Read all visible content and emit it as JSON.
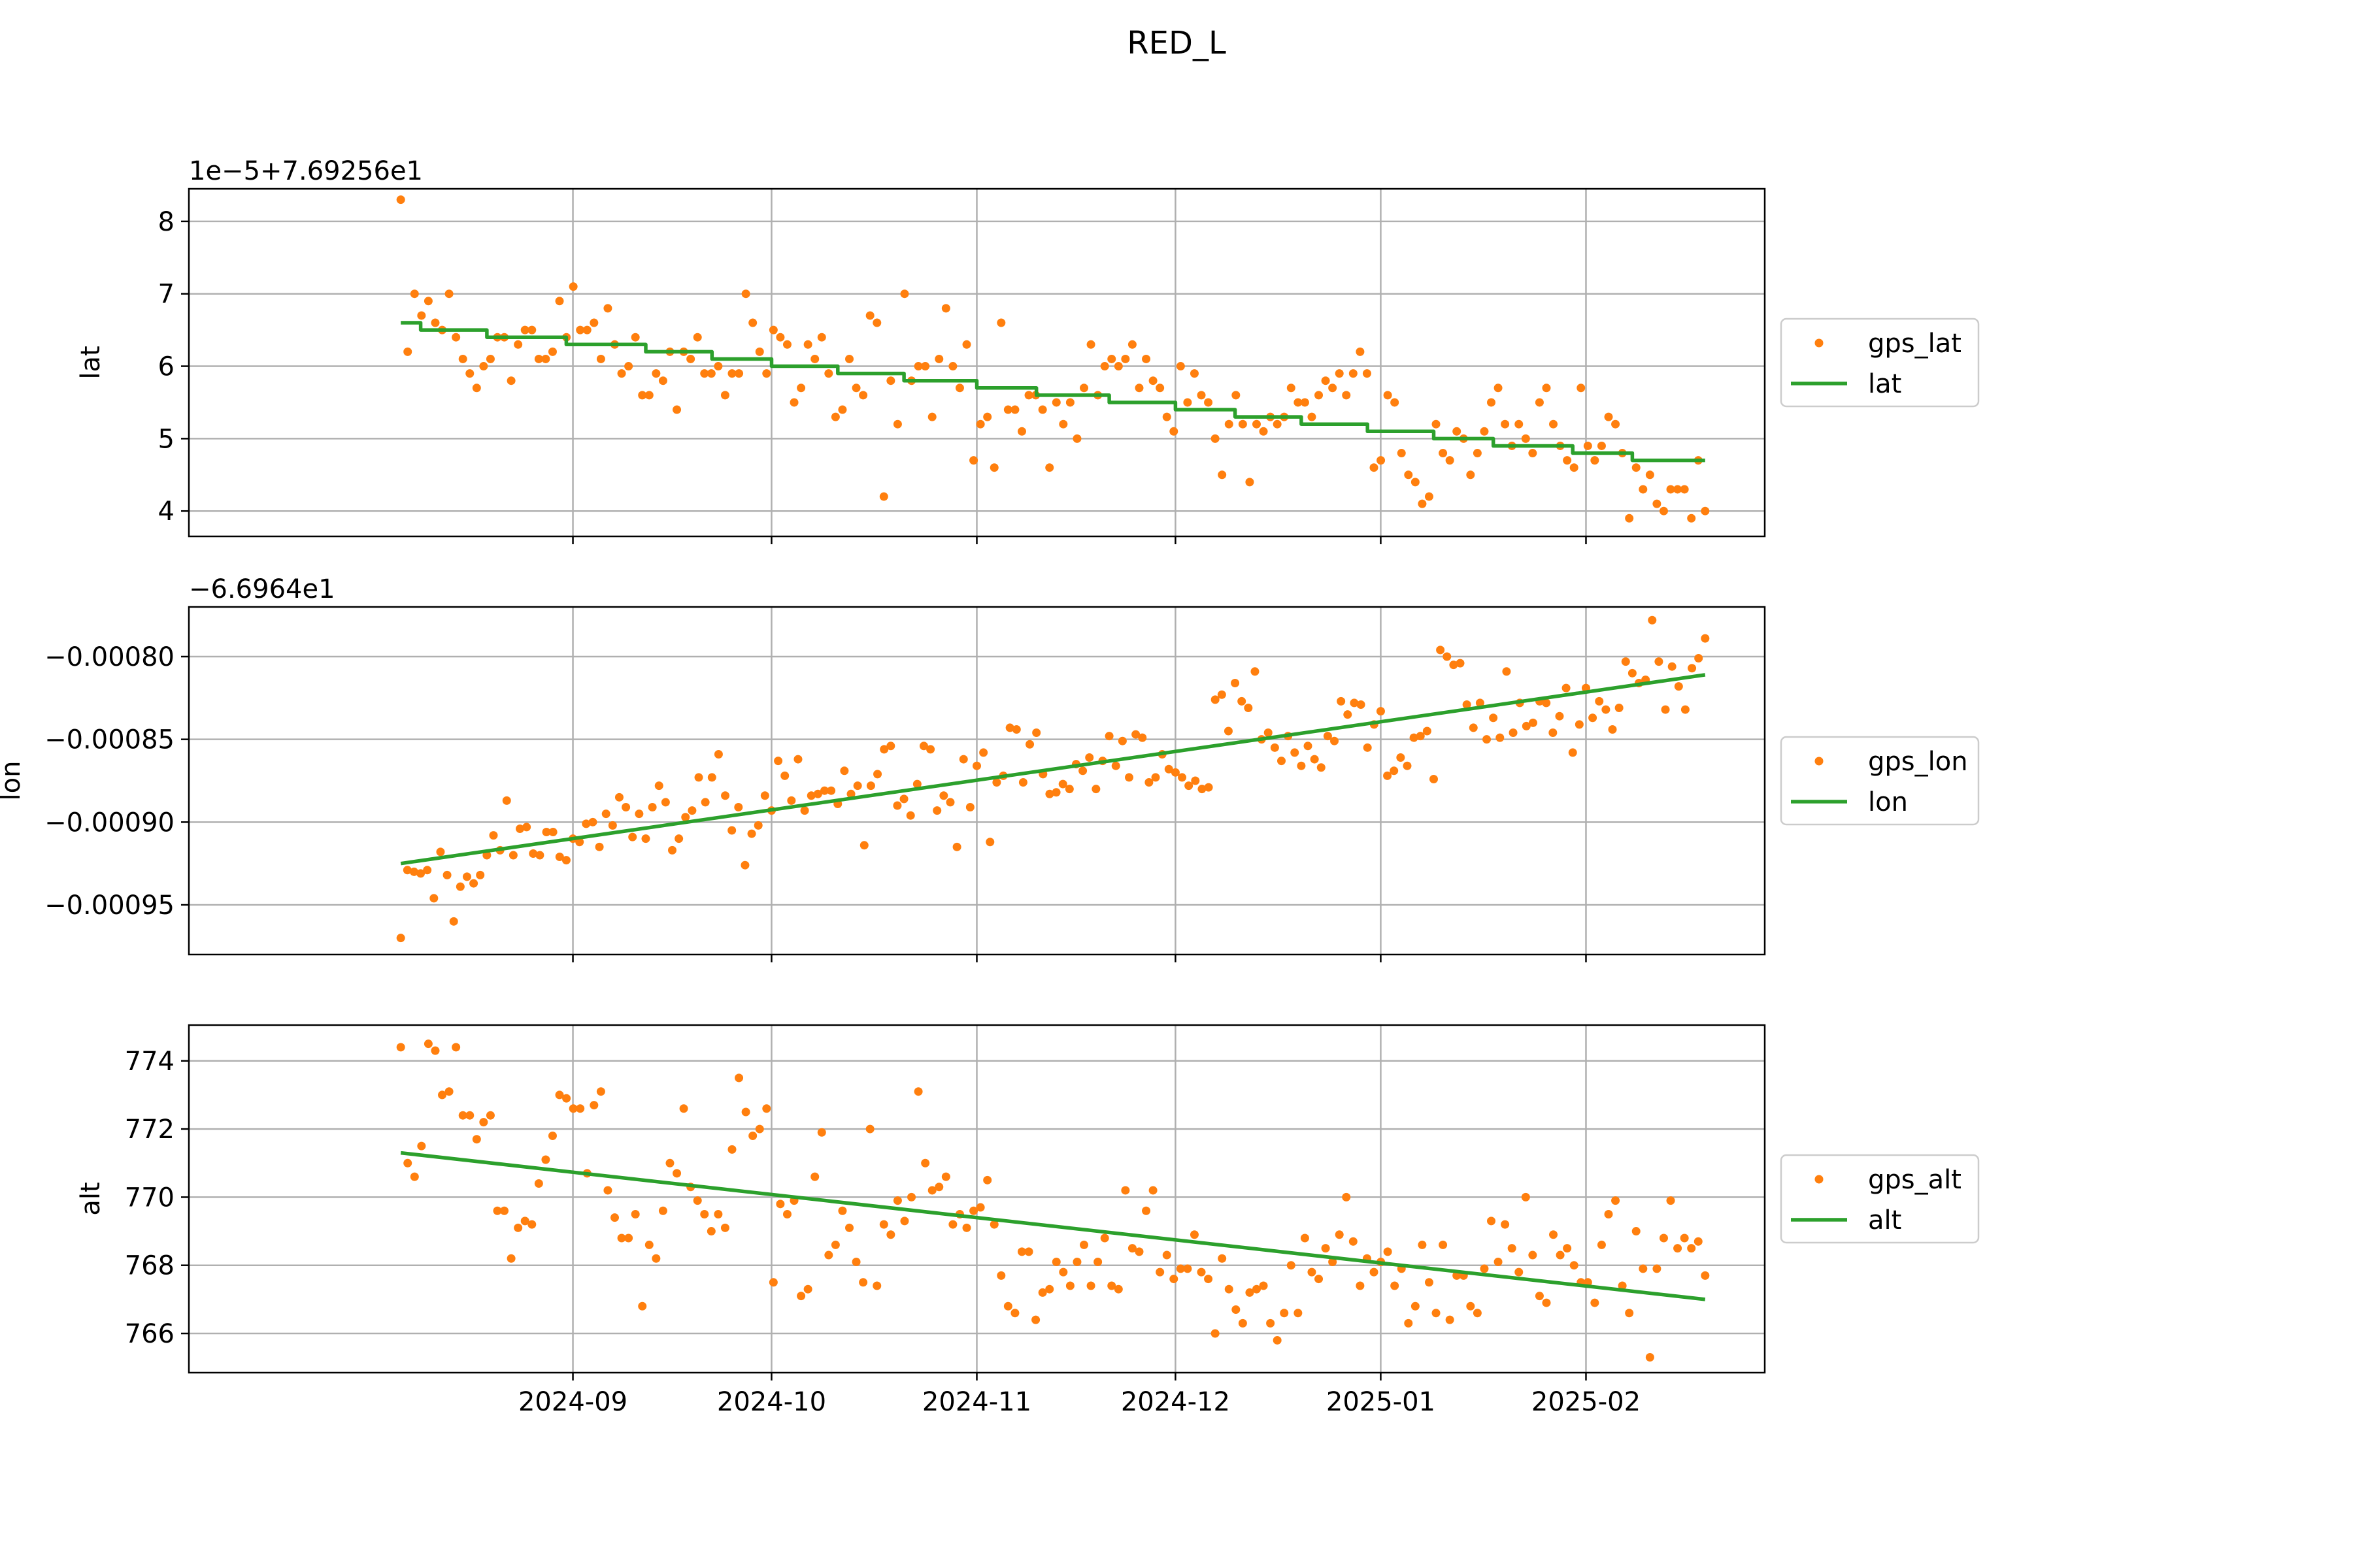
{
  "chart_data": {
    "type": "scatter+line",
    "title": "RED_L",
    "x_axis": {
      "type": "date",
      "range": [
        "2024-07-05",
        "2025-02-28"
      ],
      "tick_dates": [
        "2024-09-01",
        "2024-10-01",
        "2024-11-01",
        "2024-12-01",
        "2025-01-01",
        "2025-02-01"
      ],
      "tick_labels": [
        "2024-09",
        "2024-10",
        "2024-11",
        "2024-12",
        "2025-01",
        "2025-02"
      ]
    },
    "grid": true,
    "legend_placement": "right, outside axes",
    "panels": [
      {
        "ylabel": "lat",
        "offset_text": "1e−5+7.69256e1",
        "scale": 1e-05,
        "offset": 76.9256,
        "ylim": [
          3.65,
          8.45
        ],
        "yticks": [
          4,
          5,
          6,
          7,
          8
        ],
        "ytick_labels": [
          "4",
          "5",
          "6",
          "7",
          "8"
        ],
        "series": [
          {
            "name": "gps_lat",
            "style": "points",
            "color": "#ff7f0e",
            "start": "2024-08-06",
            "end": "2025-02-19",
            "values": [
              8.3,
              6.2,
              7.0,
              6.7,
              6.9,
              6.6,
              6.5,
              7.0,
              6.4,
              6.1,
              5.9,
              5.7,
              6.0,
              6.1,
              6.4,
              6.4,
              5.8,
              6.3,
              6.5,
              6.5,
              6.1,
              6.1,
              6.2,
              6.9,
              6.4,
              7.1,
              6.5,
              6.5,
              6.6,
              6.1,
              6.8,
              6.3,
              5.9,
              6.0,
              6.4,
              5.6,
              5.6,
              5.9,
              5.8,
              6.2,
              5.4,
              6.2,
              6.1,
              6.4,
              5.9,
              5.9,
              6.0,
              5.6,
              5.9,
              5.9,
              7.0,
              6.6,
              6.2,
              5.9,
              6.5,
              6.4,
              6.3,
              5.5,
              5.7,
              6.3,
              6.1,
              6.4,
              5.9,
              5.3,
              5.4,
              6.1,
              5.7,
              5.6,
              6.7,
              6.6,
              4.2,
              5.8,
              5.2,
              7.0,
              5.8,
              6.0,
              6.0,
              5.3,
              6.1,
              6.8,
              6.0,
              5.7,
              6.3,
              4.7,
              5.2,
              5.3,
              4.6,
              6.6,
              5.4,
              5.4,
              5.1,
              5.6,
              5.6,
              5.4,
              4.6,
              5.5,
              5.2,
              5.5,
              5.0,
              5.7,
              6.3,
              5.6,
              6.0,
              6.1,
              6.0,
              6.1,
              6.3,
              5.7,
              6.1,
              5.8,
              5.7,
              5.3,
              5.1,
              6.0,
              5.5,
              5.9,
              5.6,
              5.5,
              5.0,
              4.5,
              5.2,
              5.6,
              5.2,
              4.4,
              5.2,
              5.1,
              5.3,
              5.2,
              5.3,
              5.7,
              5.5,
              5.5,
              5.3,
              5.6,
              5.8,
              5.7,
              5.9,
              5.6,
              5.9,
              6.2,
              5.9,
              4.6,
              4.7,
              5.6,
              5.5,
              4.8,
              4.5,
              4.4,
              4.1,
              4.2,
              5.2,
              4.8,
              4.7,
              5.1,
              5.0,
              4.5,
              4.8,
              5.1,
              5.5,
              5.7,
              5.2,
              4.9,
              5.2,
              5.0,
              4.8,
              5.5,
              5.7,
              5.2,
              4.9,
              4.7,
              4.6,
              5.7,
              4.9,
              4.7,
              4.9,
              5.3,
              5.2,
              4.8,
              3.9,
              4.6,
              4.3,
              4.5,
              4.1,
              4.0,
              4.3,
              4.3,
              4.3,
              3.9,
              4.7,
              4.0
            ]
          },
          {
            "name": "lat",
            "style": "line",
            "color": "#2ca02c",
            "steps": [
              [
                "2024-08-06",
                6.6
              ],
              [
                "2024-08-08",
                6.6
              ],
              [
                "2024-08-09",
                6.5
              ],
              [
                "2024-08-19",
                6.4
              ],
              [
                "2024-08-31",
                6.3
              ],
              [
                "2024-09-12",
                6.2
              ],
              [
                "2024-09-22",
                6.1
              ],
              [
                "2024-10-01",
                6.0
              ],
              [
                "2024-10-11",
                5.9
              ],
              [
                "2024-10-21",
                5.8
              ],
              [
                "2024-11-01",
                5.7
              ],
              [
                "2024-11-10",
                5.6
              ],
              [
                "2024-11-21",
                5.5
              ],
              [
                "2024-12-01",
                5.4
              ],
              [
                "2024-12-10",
                5.3
              ],
              [
                "2024-12-20",
                5.2
              ],
              [
                "2024-12-30",
                5.1
              ],
              [
                "2025-01-09",
                5.0
              ],
              [
                "2025-01-18",
                4.9
              ],
              [
                "2025-01-30",
                4.8
              ],
              [
                "2025-02-08",
                4.7
              ],
              [
                "2025-02-19",
                4.7
              ]
            ]
          }
        ]
      },
      {
        "ylabel": "lon",
        "offset_text": "−6.6964e1",
        "scale": 1,
        "offset": -66.964,
        "ylim": [
          -0.00098,
          -0.00077
        ],
        "yticks": [
          -0.00095,
          -0.0009,
          -0.00085,
          -0.0008
        ],
        "ytick_labels": [
          "−0.00095",
          "−0.00090",
          "−0.00085",
          "−0.00080"
        ],
        "series": [
          {
            "name": "gps_lon",
            "style": "points",
            "color": "#ff7f0e",
            "start": "2024-08-06",
            "end": "2025-02-19",
            "values": [
              -0.00097,
              -0.000929,
              -0.00093,
              -0.000931,
              -0.000929,
              -0.000946,
              -0.000918,
              -0.000932,
              -0.00096,
              -0.000939,
              -0.000933,
              -0.000937,
              -0.000932,
              -0.00092,
              -0.000908,
              -0.000917,
              -0.000887,
              -0.00092,
              -0.000904,
              -0.000903,
              -0.000919,
              -0.00092,
              -0.000906,
              -0.000906,
              -0.000921,
              -0.000923,
              -0.00091,
              -0.000912,
              -0.000901,
              -0.0009,
              -0.000915,
              -0.000895,
              -0.000902,
              -0.000885,
              -0.000891,
              -0.000909,
              -0.000895,
              -0.00091,
              -0.000891,
              -0.000878,
              -0.000888,
              -0.000917,
              -0.00091,
              -0.000897,
              -0.000893,
              -0.000873,
              -0.000888,
              -0.000873,
              -0.000859,
              -0.000884,
              -0.000905,
              -0.000891,
              -0.000926,
              -0.000907,
              -0.000902,
              -0.000884,
              -0.000893,
              -0.000863,
              -0.000872,
              -0.000887,
              -0.000862,
              -0.000893,
              -0.000884,
              -0.000883,
              -0.000881,
              -0.000881,
              -0.000889,
              -0.000869,
              -0.000883,
              -0.000878,
              -0.000914,
              -0.000878,
              -0.000871,
              -0.000856,
              -0.000854,
              -0.00089,
              -0.000886,
              -0.000896,
              -0.000877,
              -0.000854,
              -0.000856,
              -0.000893,
              -0.000884,
              -0.000888,
              -0.000915,
              -0.000862,
              -0.000891,
              -0.000866,
              -0.000858,
              -0.000912,
              -0.000876,
              -0.000872,
              -0.000843,
              -0.000844,
              -0.000876,
              -0.000853,
              -0.000846,
              -0.000871,
              -0.000883,
              -0.000882,
              -0.000877,
              -0.00088,
              -0.000865,
              -0.000869,
              -0.000861,
              -0.00088,
              -0.000863,
              -0.000848,
              -0.000866,
              -0.000851,
              -0.000873,
              -0.000847,
              -0.000849,
              -0.000876,
              -0.000873,
              -0.000859,
              -0.000868,
              -0.00087,
              -0.000873,
              -0.000878,
              -0.000875,
              -0.00088,
              -0.000879,
              -0.000826,
              -0.000823,
              -0.000845,
              -0.000816,
              -0.000827,
              -0.000831,
              -0.000809,
              -0.00085,
              -0.000846,
              -0.000855,
              -0.000863,
              -0.000848,
              -0.000858,
              -0.000866,
              -0.000854,
              -0.000862,
              -0.000867,
              -0.000848,
              -0.000851,
              -0.000827,
              -0.000835,
              -0.000828,
              -0.000829,
              -0.000855,
              -0.000841,
              -0.000833,
              -0.000872,
              -0.000869,
              -0.000861,
              -0.000866,
              -0.000849,
              -0.000848,
              -0.000845,
              -0.000874,
              -0.000796,
              -0.0008,
              -0.000805,
              -0.000804,
              -0.000829,
              -0.000843,
              -0.000828,
              -0.00085,
              -0.000837,
              -0.000849,
              -0.000809,
              -0.000846,
              -0.000828,
              -0.000842,
              -0.00084,
              -0.000827,
              -0.000828,
              -0.000846,
              -0.000836,
              -0.000819,
              -0.000858,
              -0.000841,
              -0.000819,
              -0.000837,
              -0.000827,
              -0.000832,
              -0.000844,
              -0.000831,
              -0.000803,
              -0.00081,
              -0.000816,
              -0.000814,
              -0.000778,
              -0.000803,
              -0.000832,
              -0.000806,
              -0.000818,
              -0.000832,
              -0.000807,
              -0.000801,
              -0.000789
            ]
          },
          {
            "name": "lon",
            "style": "line",
            "color": "#2ca02c",
            "points": [
              [
                "2024-08-06",
                -0.000925
              ],
              [
                "2025-02-19",
                -0.000811
              ]
            ]
          }
        ]
      },
      {
        "ylabel": "alt",
        "offset_text": "",
        "scale": 1,
        "offset": 0,
        "ylim": [
          764.85,
          775.05
        ],
        "yticks": [
          766,
          768,
          770,
          772,
          774
        ],
        "ytick_labels": [
          "766",
          "768",
          "770",
          "772",
          "774"
        ],
        "series": [
          {
            "name": "gps_alt",
            "style": "points",
            "color": "#ff7f0e",
            "start": "2024-08-06",
            "end": "2025-02-19",
            "values": [
              774.4,
              771.0,
              770.6,
              771.5,
              774.5,
              774.3,
              773.0,
              773.1,
              774.4,
              772.4,
              772.4,
              771.7,
              772.2,
              772.4,
              769.6,
              769.6,
              768.2,
              769.1,
              769.3,
              769.2,
              770.4,
              771.1,
              771.8,
              773.0,
              772.9,
              772.6,
              772.6,
              770.7,
              772.7,
              773.1,
              770.2,
              769.4,
              768.8,
              768.8,
              769.5,
              766.8,
              768.6,
              768.2,
              769.6,
              771.0,
              770.7,
              772.6,
              770.3,
              769.9,
              769.5,
              769.0,
              769.5,
              769.1,
              771.4,
              773.5,
              772.5,
              771.8,
              772.0,
              772.6,
              767.5,
              769.8,
              769.5,
              769.9,
              767.1,
              767.3,
              770.6,
              771.9,
              768.3,
              768.6,
              769.6,
              769.1,
              768.1,
              767.5,
              772.0,
              767.4,
              769.2,
              768.9,
              769.9,
              769.3,
              770.0,
              773.1,
              771.0,
              770.2,
              770.3,
              770.6,
              769.2,
              769.5,
              769.1,
              769.6,
              769.7,
              770.5,
              769.2,
              767.7,
              766.8,
              766.6,
              768.4,
              768.4,
              766.4,
              767.2,
              767.3,
              768.1,
              767.8,
              767.4,
              768.1,
              768.6,
              767.4,
              768.1,
              768.8,
              767.4,
              767.3,
              770.2,
              768.5,
              768.4,
              769.6,
              770.2,
              767.8,
              768.3,
              767.6,
              767.9,
              767.9,
              768.9,
              767.8,
              767.6,
              766.0,
              768.2,
              767.3,
              766.7,
              766.3,
              767.2,
              767.3,
              767.4,
              766.3,
              765.8,
              766.6,
              768.0,
              766.6,
              768.8,
              767.8,
              767.6,
              768.5,
              768.1,
              768.9,
              770.0,
              768.7,
              767.4,
              768.2,
              767.8,
              768.1,
              768.4,
              767.4,
              767.9,
              766.3,
              766.8,
              768.6,
              767.5,
              766.6,
              768.6,
              766.4,
              767.7,
              767.7,
              766.8,
              766.6,
              767.9,
              769.3,
              768.1,
              769.2,
              768.5,
              767.8,
              770.0,
              768.3,
              767.1,
              766.9,
              768.9,
              768.3,
              768.5,
              768.0,
              767.5,
              767.5,
              766.9,
              768.6,
              769.5,
              769.9,
              767.4,
              766.6,
              769.0,
              767.9,
              765.3,
              767.9,
              768.8,
              769.9,
              768.5,
              768.8,
              768.5,
              768.7,
              767.7
            ]
          },
          {
            "name": "alt",
            "style": "line",
            "color": "#2ca02c",
            "points": [
              [
                "2024-08-06",
                771.3
              ],
              [
                "2025-02-19",
                767.0
              ]
            ]
          }
        ]
      }
    ]
  }
}
